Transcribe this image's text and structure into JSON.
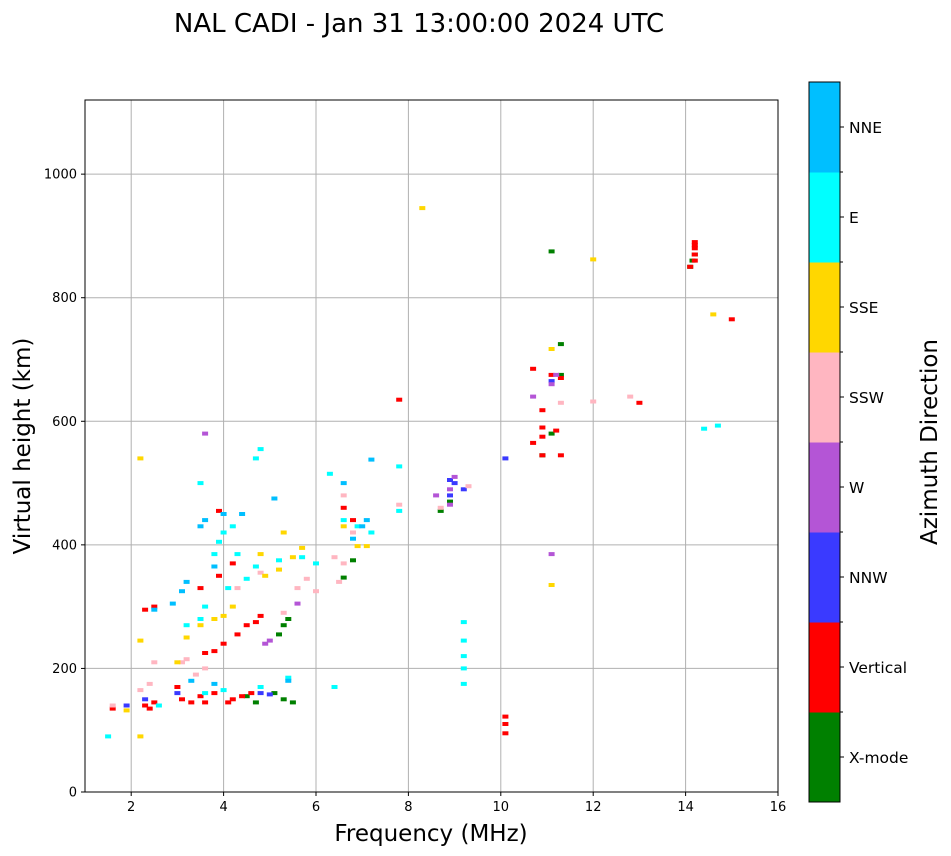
{
  "chart_data": {
    "type": "scatter",
    "title": "NAL CADI - Jan 31 13:00:00 2024 UTC",
    "xlabel": "Frequency (MHz)",
    "ylabel": "Virtual height (km)",
    "xlim": [
      1,
      16
    ],
    "ylim": [
      0,
      1120
    ],
    "xticks": [
      "2",
      "4",
      "6",
      "8",
      "10",
      "12",
      "14",
      "16"
    ],
    "yticks": [
      "0",
      "200",
      "400",
      "600",
      "800",
      "1000"
    ],
    "grid": true,
    "colorbar": {
      "label": "Azimuth Direction",
      "categories": [
        {
          "name": "X-mode",
          "color": "#008000"
        },
        {
          "name": "Vertical",
          "color": "#ff0000"
        },
        {
          "name": "NNW",
          "color": "#3a3aff"
        },
        {
          "name": "W",
          "color": "#b455d6"
        },
        {
          "name": "SSW",
          "color": "#ffb6c1"
        },
        {
          "name": "SSE",
          "color": "#ffd700"
        },
        {
          "name": "E",
          "color": "#00ffff"
        },
        {
          "name": "NNE",
          "color": "#00bfff"
        }
      ]
    },
    "series": [
      {
        "name": "X-mode",
        "points": [
          [
            4.5,
            155
          ],
          [
            4.7,
            145
          ],
          [
            5.1,
            160
          ],
          [
            5.3,
            150
          ],
          [
            5.5,
            145
          ],
          [
            5.2,
            255
          ],
          [
            5.3,
            270
          ],
          [
            5.4,
            280
          ],
          [
            6.6,
            347
          ],
          [
            6.8,
            375
          ],
          [
            8.7,
            455
          ],
          [
            8.9,
            470
          ],
          [
            10.9,
            545
          ],
          [
            11.1,
            580
          ],
          [
            11.3,
            675
          ],
          [
            11.1,
            875
          ],
          [
            14.1,
            850
          ],
          [
            14.15,
            860
          ],
          [
            14.2,
            870
          ],
          [
            11.3,
            725
          ]
        ]
      },
      {
        "name": "Vertical",
        "points": [
          [
            1.6,
            135
          ],
          [
            2.3,
            140
          ],
          [
            2.4,
            135
          ],
          [
            2.5,
            145
          ],
          [
            3.1,
            150
          ],
          [
            3.0,
            170
          ],
          [
            3.3,
            145
          ],
          [
            3.5,
            155
          ],
          [
            3.6,
            145
          ],
          [
            3.8,
            160
          ],
          [
            4.1,
            145
          ],
          [
            4.2,
            150
          ],
          [
            4.4,
            155
          ],
          [
            4.6,
            160
          ],
          [
            3.6,
            225
          ],
          [
            3.8,
            228
          ],
          [
            4.0,
            240
          ],
          [
            4.3,
            255
          ],
          [
            4.5,
            270
          ],
          [
            4.7,
            275
          ],
          [
            4.8,
            285
          ],
          [
            3.5,
            330
          ],
          [
            3.9,
            350
          ],
          [
            4.2,
            370
          ],
          [
            3.9,
            455
          ],
          [
            2.3,
            295
          ],
          [
            2.5,
            300
          ],
          [
            6.6,
            460
          ],
          [
            6.8,
            440
          ],
          [
            7.8,
            635
          ],
          [
            10.1,
            95
          ],
          [
            10.1,
            110
          ],
          [
            10.1,
            122
          ],
          [
            10.7,
            565
          ],
          [
            10.9,
            545
          ],
          [
            10.9,
            575
          ],
          [
            10.9,
            590
          ],
          [
            10.9,
            618
          ],
          [
            11.2,
            585
          ],
          [
            11.3,
            545
          ],
          [
            10.7,
            685
          ],
          [
            11.1,
            675
          ],
          [
            11.3,
            670
          ],
          [
            13.0,
            630
          ],
          [
            14.1,
            850
          ],
          [
            14.2,
            860
          ],
          [
            14.2,
            870
          ],
          [
            14.2,
            880
          ],
          [
            14.2,
            890
          ],
          [
            15.0,
            765
          ],
          [
            14.2,
            885
          ]
        ]
      },
      {
        "name": "NNW",
        "points": [
          [
            1.9,
            140
          ],
          [
            2.3,
            150
          ],
          [
            3.0,
            160
          ],
          [
            4.8,
            160
          ],
          [
            5.0,
            158
          ],
          [
            8.9,
            505
          ],
          [
            9.0,
            500
          ],
          [
            9.2,
            490
          ],
          [
            10.1,
            540
          ],
          [
            11.1,
            665
          ],
          [
            8.9,
            480
          ]
        ]
      },
      {
        "name": "W",
        "points": [
          [
            3.6,
            580
          ],
          [
            4.9,
            240
          ],
          [
            5.0,
            245
          ],
          [
            5.6,
            305
          ],
          [
            8.6,
            480
          ],
          [
            8.9,
            465
          ],
          [
            8.9,
            490
          ],
          [
            9.0,
            510
          ],
          [
            10.7,
            640
          ],
          [
            11.1,
            660
          ],
          [
            11.1,
            385
          ],
          [
            11.2,
            675
          ]
        ]
      },
      {
        "name": "SSW",
        "points": [
          [
            1.6,
            140
          ],
          [
            2.2,
            165
          ],
          [
            2.4,
            175
          ],
          [
            2.5,
            210
          ],
          [
            3.1,
            210
          ],
          [
            3.2,
            215
          ],
          [
            3.6,
            200
          ],
          [
            3.4,
            190
          ],
          [
            4.3,
            330
          ],
          [
            4.8,
            355
          ],
          [
            5.3,
            290
          ],
          [
            5.6,
            330
          ],
          [
            5.8,
            345
          ],
          [
            6.0,
            325
          ],
          [
            6.4,
            380
          ],
          [
            6.6,
            370
          ],
          [
            6.5,
            340
          ],
          [
            6.6,
            480
          ],
          [
            7.8,
            465
          ],
          [
            8.7,
            460
          ],
          [
            9.3,
            495
          ],
          [
            11.3,
            630
          ],
          [
            12.0,
            632
          ],
          [
            12.8,
            640
          ],
          [
            6.8,
            420
          ]
        ]
      },
      {
        "name": "SSE",
        "points": [
          [
            1.9,
            132
          ],
          [
            2.2,
            245
          ],
          [
            2.2,
            90
          ],
          [
            2.2,
            540
          ],
          [
            3.0,
            210
          ],
          [
            3.2,
            250
          ],
          [
            3.5,
            270
          ],
          [
            3.8,
            280
          ],
          [
            4.0,
            285
          ],
          [
            4.2,
            300
          ],
          [
            4.9,
            350
          ],
          [
            5.2,
            360
          ],
          [
            5.5,
            380
          ],
          [
            5.7,
            395
          ],
          [
            4.8,
            385
          ],
          [
            5.3,
            420
          ],
          [
            6.6,
            430
          ],
          [
            6.9,
            398
          ],
          [
            7.1,
            398
          ],
          [
            8.3,
            945
          ],
          [
            11.1,
            335
          ],
          [
            11.1,
            717
          ],
          [
            12.0,
            862
          ],
          [
            14.6,
            773
          ]
        ]
      },
      {
        "name": "E",
        "points": [
          [
            1.5,
            90
          ],
          [
            2.6,
            140
          ],
          [
            3.6,
            160
          ],
          [
            4.0,
            165
          ],
          [
            4.8,
            170
          ],
          [
            5.4,
            185
          ],
          [
            6.4,
            170
          ],
          [
            3.2,
            270
          ],
          [
            3.5,
            280
          ],
          [
            3.6,
            300
          ],
          [
            4.1,
            330
          ],
          [
            4.5,
            345
          ],
          [
            4.7,
            365
          ],
          [
            5.2,
            375
          ],
          [
            3.8,
            385
          ],
          [
            3.9,
            405
          ],
          [
            4.0,
            420
          ],
          [
            4.2,
            430
          ],
          [
            3.5,
            500
          ],
          [
            4.3,
            385
          ],
          [
            5.7,
            380
          ],
          [
            6.0,
            370
          ],
          [
            6.3,
            515
          ],
          [
            6.6,
            440
          ],
          [
            6.9,
            430
          ],
          [
            7.2,
            420
          ],
          [
            7.8,
            455
          ],
          [
            7.8,
            527
          ],
          [
            9.2,
            175
          ],
          [
            9.2,
            200
          ],
          [
            9.2,
            220
          ],
          [
            9.2,
            245
          ],
          [
            9.2,
            275
          ],
          [
            14.4,
            588
          ],
          [
            14.7,
            593
          ],
          [
            4.7,
            540
          ],
          [
            4.8,
            555
          ]
        ]
      },
      {
        "name": "NNE",
        "points": [
          [
            2.5,
            295
          ],
          [
            2.9,
            305
          ],
          [
            3.1,
            325
          ],
          [
            3.2,
            340
          ],
          [
            3.8,
            365
          ],
          [
            3.6,
            440
          ],
          [
            4.0,
            450
          ],
          [
            4.4,
            450
          ],
          [
            5.1,
            475
          ],
          [
            6.6,
            500
          ],
          [
            6.8,
            410
          ],
          [
            7.0,
            430
          ],
          [
            7.1,
            440
          ],
          [
            7.2,
            538
          ],
          [
            3.5,
            430
          ],
          [
            3.3,
            180
          ],
          [
            3.8,
            175
          ],
          [
            5.4,
            180
          ]
        ]
      }
    ]
  }
}
